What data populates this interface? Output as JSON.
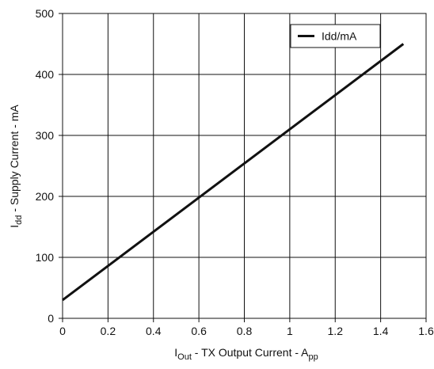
{
  "chart_data": {
    "type": "line",
    "xlabel": {
      "main": "I",
      "sub": "Out",
      "rest": " - TX Output Current - A",
      "sub2": "pp"
    },
    "ylabel": {
      "main": "I",
      "sub": "dd",
      "rest": " - Supply Current - mA"
    },
    "xlim": [
      0,
      1.6
    ],
    "ylim": [
      0,
      500
    ],
    "xticks": [
      "0",
      "0.2",
      "0.4",
      "0.6",
      "0.8",
      "1",
      "1.2",
      "1.4",
      "1.6"
    ],
    "yticks": [
      "0",
      "100",
      "200",
      "300",
      "400",
      "500"
    ],
    "grid": true,
    "legend_position": "top-right",
    "series": [
      {
        "name": "Idd/mA",
        "color": "#111111",
        "x": [
          0,
          1.5
        ],
        "y": [
          30,
          450
        ]
      }
    ]
  }
}
